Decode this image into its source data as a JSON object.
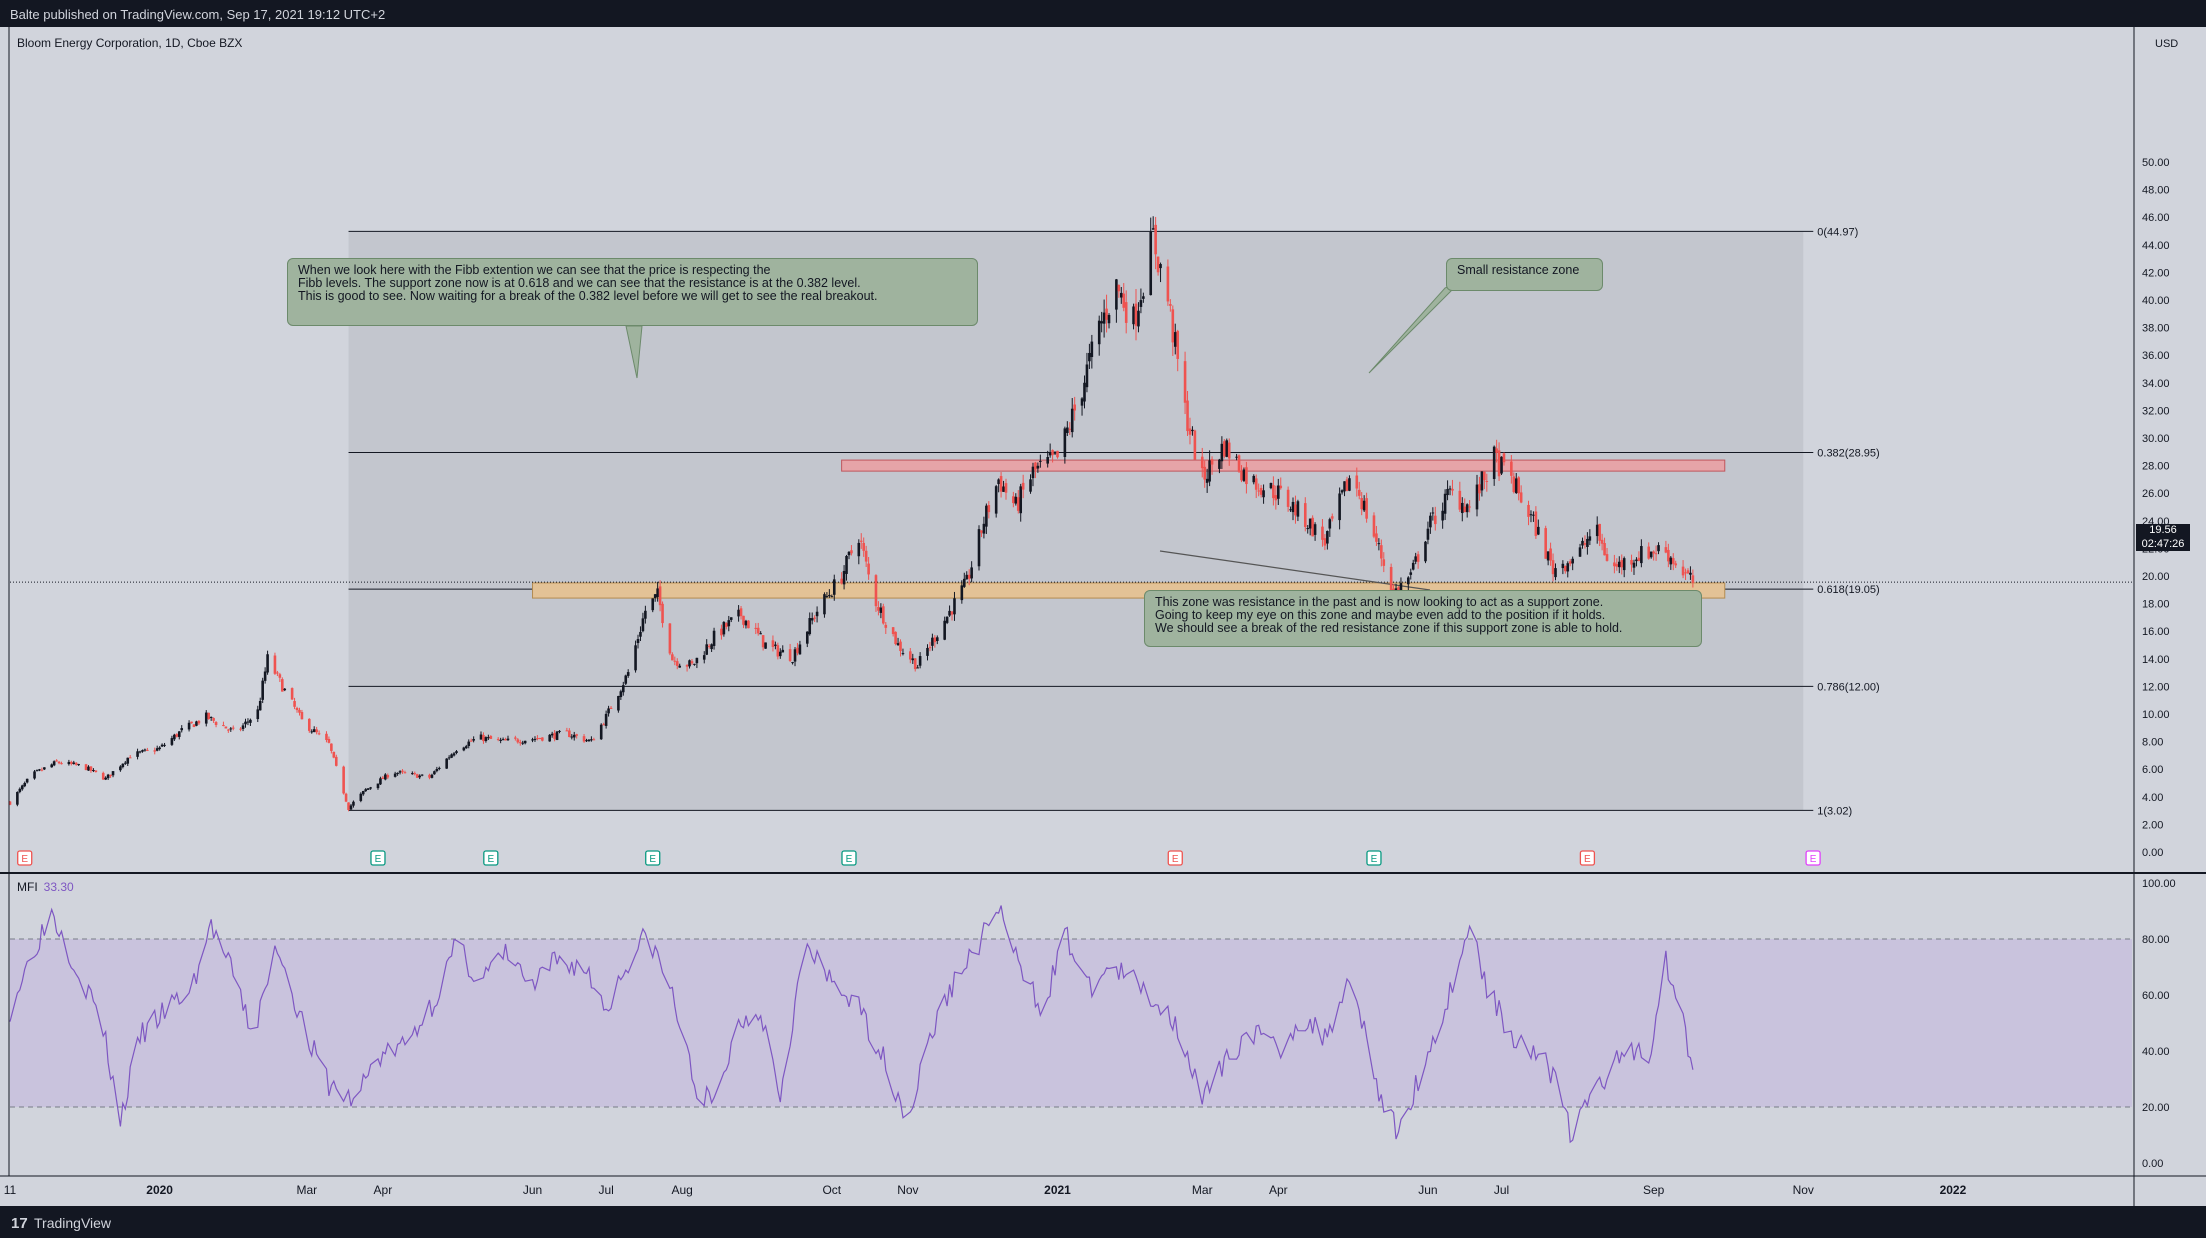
{
  "header": {
    "publish_info": "Balte published on TradingView.com, Sep 17, 2021 19:12 UTC+2"
  },
  "footer": {
    "logo_glyph": "17",
    "brand": "TradingView"
  },
  "symbol": {
    "title": "Bloom Energy Corporation, 1D, Cboe BZX"
  },
  "price_axis": {
    "currency": "USD",
    "current_price": "19.56",
    "countdown": "02:47:26"
  },
  "indicator": {
    "name": "MFI",
    "value": "33.30",
    "color": "#7e57c2"
  },
  "annotations": {
    "callout_main": "When we look here with the Fibb extention we can see that the price is respecting the\nFibb levels. The support zone now is at 0.618 and we can see that the resistance is at the 0.382 level.\nThis is good to see. Now waiting for a break of the 0.382 level before we will get to see the real breakout.",
    "callout_resistance": "Small resistance zone",
    "callout_support": "This zone was resistance in the past and is now looking to act as a support zone.\nGoing to keep my eye on this zone and maybe even add to the position if it holds.\nWe should see a break of the red resistance zone if this support zone is able to hold."
  },
  "colors": {
    "up": "#131722",
    "down": "#ef5350",
    "support_zone": "#e3c296",
    "resistance_zone": "#e6a4a8",
    "mfi_line": "#7e57c2",
    "fib_area": "#c3c6ce"
  },
  "earnings_markers": [
    {
      "date": "2019-11-07",
      "type": "down",
      "label": "E"
    },
    {
      "date": "2020-03-30",
      "type": "up",
      "label": "E"
    },
    {
      "date": "2020-05-15",
      "type": "up",
      "label": "E"
    },
    {
      "date": "2020-07-20",
      "type": "up",
      "label": "E"
    },
    {
      "date": "2020-10-08",
      "type": "up",
      "label": "E"
    },
    {
      "date": "2021-02-18",
      "type": "down",
      "label": "E"
    },
    {
      "date": "2021-05-10",
      "type": "up",
      "label": "E"
    },
    {
      "date": "2021-08-05",
      "type": "down",
      "label": "E"
    },
    {
      "date": "2021-11-05",
      "type": "future",
      "label": "E"
    }
  ],
  "chart_data": [
    {
      "type": "candlestick",
      "title": "Bloom Energy Corporation, 1D, Cboe BZX",
      "ylabel": "USD",
      "ylim": [
        0,
        50
      ],
      "xlim": [
        "2019-11-01",
        "2022-03-15"
      ],
      "y_ticks": [
        "0.00",
        "2.00",
        "4.00",
        "6.00",
        "8.00",
        "10.00",
        "12.00",
        "14.00",
        "16.00",
        "18.00",
        "20.00",
        "22.00",
        "24.00",
        "26.00",
        "28.00",
        "30.00",
        "32.00",
        "34.00",
        "36.00",
        "38.00",
        "40.00",
        "42.00",
        "44.00",
        "46.00",
        "48.00",
        "50.00"
      ],
      "x_ticks": [
        {
          "date": "2019-11-01",
          "label": "11",
          "bold": false
        },
        {
          "date": "2020-01-01",
          "label": "2020",
          "bold": true
        },
        {
          "date": "2020-03-01",
          "label": "Mar",
          "bold": false
        },
        {
          "date": "2020-04-01",
          "label": "Apr",
          "bold": false
        },
        {
          "date": "2020-06-01",
          "label": "Jun",
          "bold": false
        },
        {
          "date": "2020-07-01",
          "label": "Jul",
          "bold": false
        },
        {
          "date": "2020-08-01",
          "label": "Aug",
          "bold": false
        },
        {
          "date": "2020-10-01",
          "label": "Oct",
          "bold": false
        },
        {
          "date": "2020-11-01",
          "label": "Nov",
          "bold": false
        },
        {
          "date": "2021-01-01",
          "label": "2021",
          "bold": true
        },
        {
          "date": "2021-03-01",
          "label": "Mar",
          "bold": false
        },
        {
          "date": "2021-04-01",
          "label": "Apr",
          "bold": false
        },
        {
          "date": "2021-06-01",
          "label": "Jun",
          "bold": false
        },
        {
          "date": "2021-07-01",
          "label": "Jul",
          "bold": false
        },
        {
          "date": "2021-09-01",
          "label": "Sep",
          "bold": false
        },
        {
          "date": "2021-11-01",
          "label": "Nov",
          "bold": false
        },
        {
          "date": "2022-01-01",
          "label": "2022",
          "bold": true
        }
      ],
      "close_path": [
        [
          "2019-11-01",
          3.6
        ],
        [
          "2019-11-10",
          5.6
        ],
        [
          "2019-11-20",
          6.5
        ],
        [
          "2019-12-01",
          6.2
        ],
        [
          "2019-12-10",
          5.3
        ],
        [
          "2019-12-20",
          7.0
        ],
        [
          "2020-01-01",
          7.5
        ],
        [
          "2020-01-10",
          8.8
        ],
        [
          "2020-01-20",
          9.8
        ],
        [
          "2020-02-01",
          8.6
        ],
        [
          "2020-02-10",
          10.2
        ],
        [
          "2020-02-14",
          14.0
        ],
        [
          "2020-02-20",
          12.0
        ],
        [
          "2020-02-28",
          9.5
        ],
        [
          "2020-03-10",
          7.8
        ],
        [
          "2020-03-18",
          3.2
        ],
        [
          "2020-03-25",
          4.5
        ],
        [
          "2020-04-05",
          5.8
        ],
        [
          "2020-04-20",
          5.4
        ],
        [
          "2020-05-01",
          7.5
        ],
        [
          "2020-05-10",
          8.3
        ],
        [
          "2020-05-20",
          8.0
        ],
        [
          "2020-06-01",
          8.2
        ],
        [
          "2020-06-15",
          8.6
        ],
        [
          "2020-06-25",
          8.0
        ],
        [
          "2020-07-01",
          9.8
        ],
        [
          "2020-07-10",
          13.0
        ],
        [
          "2020-07-17",
          17.5
        ],
        [
          "2020-07-22",
          18.6
        ],
        [
          "2020-07-28",
          14.0
        ],
        [
          "2020-08-05",
          13.5
        ],
        [
          "2020-08-15",
          15.8
        ],
        [
          "2020-08-25",
          17.2
        ],
        [
          "2020-09-05",
          14.8
        ],
        [
          "2020-09-15",
          14.2
        ],
        [
          "2020-09-25",
          17.5
        ],
        [
          "2020-10-05",
          20.0
        ],
        [
          "2020-10-12",
          23.0
        ],
        [
          "2020-10-18",
          18.5
        ],
        [
          "2020-10-28",
          15.0
        ],
        [
          "2020-11-05",
          13.5
        ],
        [
          "2020-11-15",
          16.5
        ],
        [
          "2020-11-25",
          19.5
        ],
        [
          "2020-12-02",
          24.0
        ],
        [
          "2020-12-08",
          27.0
        ],
        [
          "2020-12-15",
          25.0
        ],
        [
          "2020-12-22",
          27.5
        ],
        [
          "2021-01-01",
          28.5
        ],
        [
          "2021-01-10",
          33.0
        ],
        [
          "2021-01-18",
          38.0
        ],
        [
          "2021-01-25",
          41.0
        ],
        [
          "2021-02-01",
          38.5
        ],
        [
          "2021-02-09",
          44.5
        ],
        [
          "2021-02-15",
          40.0
        ],
        [
          "2021-02-22",
          32.0
        ],
        [
          "2021-03-01",
          27.0
        ],
        [
          "2021-03-10",
          29.5
        ],
        [
          "2021-03-20",
          27.0
        ],
        [
          "2021-04-01",
          26.0
        ],
        [
          "2021-04-10",
          24.5
        ],
        [
          "2021-04-20",
          22.5
        ],
        [
          "2021-05-01",
          27.5
        ],
        [
          "2021-05-10",
          23.0
        ],
        [
          "2021-05-18",
          18.8
        ],
        [
          "2021-05-25",
          20.0
        ],
        [
          "2021-06-01",
          23.5
        ],
        [
          "2021-06-10",
          26.0
        ],
        [
          "2021-06-18",
          25.0
        ],
        [
          "2021-06-28",
          28.5
        ],
        [
          "2021-07-05",
          27.0
        ],
        [
          "2021-07-15",
          23.5
        ],
        [
          "2021-07-22",
          20.5
        ],
        [
          "2021-08-01",
          21.5
        ],
        [
          "2021-08-08",
          23.5
        ],
        [
          "2021-08-15",
          20.5
        ],
        [
          "2021-08-25",
          21.5
        ],
        [
          "2021-09-05",
          22.0
        ],
        [
          "2021-09-12",
          20.5
        ],
        [
          "2021-09-17",
          19.56
        ]
      ],
      "fib_levels": [
        {
          "ratio": "0",
          "price": 44.97,
          "label": "0(44.97)"
        },
        {
          "ratio": "0.382",
          "price": 28.95,
          "label": "0.382(28.95)"
        },
        {
          "ratio": "0.618",
          "price": 19.05,
          "label": "0.618(19.05)"
        },
        {
          "ratio": "0.786",
          "price": 12.0,
          "label": "0.786(12.00)"
        },
        {
          "ratio": "1",
          "price": 3.02,
          "label": "1(3.02)"
        }
      ],
      "fib_range": {
        "start": "2020-03-18",
        "end": "2021-11-01"
      },
      "zones": [
        {
          "name": "resistance",
          "top": 28.4,
          "bottom": 27.6,
          "start": "2020-10-05",
          "end": "2021-09-30"
        },
        {
          "name": "support",
          "top": 19.5,
          "bottom": 18.4,
          "start": "2020-06-01",
          "end": "2021-09-30"
        }
      ],
      "current_price_line": 19.56
    },
    {
      "type": "line",
      "title": "MFI",
      "ylim": [
        0,
        100
      ],
      "y_ticks": [
        "0.00",
        "20.00",
        "40.00",
        "60.00",
        "80.00",
        "100.00"
      ],
      "bands": [
        20,
        80
      ],
      "series": [
        {
          "name": "MFI",
          "values": [
            [
              "2019-11-01",
              55
            ],
            [
              "2019-11-10",
              75
            ],
            [
              "2019-11-18",
              90
            ],
            [
              "2019-11-28",
              70
            ],
            [
              "2019-12-08",
              52
            ],
            [
              "2019-12-16",
              15
            ],
            [
              "2019-12-24",
              45
            ],
            [
              "2020-01-04",
              55
            ],
            [
              "2020-01-14",
              62
            ],
            [
              "2020-01-22",
              85
            ],
            [
              "2020-02-01",
              65
            ],
            [
              "2020-02-08",
              45
            ],
            [
              "2020-02-18",
              78
            ],
            [
              "2020-03-01",
              45
            ],
            [
              "2020-03-10",
              28
            ],
            [
              "2020-03-20",
              22
            ],
            [
              "2020-03-30",
              38
            ],
            [
              "2020-04-10",
              42
            ],
            [
              "2020-04-22",
              58
            ],
            [
              "2020-05-01",
              78
            ],
            [
              "2020-05-10",
              65
            ],
            [
              "2020-05-22",
              75
            ],
            [
              "2020-06-01",
              62
            ],
            [
              "2020-06-10",
              72
            ],
            [
              "2020-06-22",
              70
            ],
            [
              "2020-07-01",
              55
            ],
            [
              "2020-07-10",
              72
            ],
            [
              "2020-07-18",
              82
            ],
            [
              "2020-07-28",
              60
            ],
            [
              "2020-08-06",
              28
            ],
            [
              "2020-08-14",
              20
            ],
            [
              "2020-08-24",
              50
            ],
            [
              "2020-09-02",
              55
            ],
            [
              "2020-09-10",
              25
            ],
            [
              "2020-09-20",
              78
            ],
            [
              "2020-09-30",
              65
            ],
            [
              "2020-10-10",
              58
            ],
            [
              "2020-10-20",
              42
            ],
            [
              "2020-11-01",
              15
            ],
            [
              "2020-11-10",
              45
            ],
            [
              "2020-11-20",
              65
            ],
            [
              "2020-12-01",
              80
            ],
            [
              "2020-12-08",
              92
            ],
            [
              "2020-12-16",
              70
            ],
            [
              "2020-12-26",
              55
            ],
            [
              "2021-01-04",
              82
            ],
            [
              "2021-01-14",
              62
            ],
            [
              "2021-01-22",
              70
            ],
            [
              "2021-02-01",
              65
            ],
            [
              "2021-02-10",
              58
            ],
            [
              "2021-02-20",
              48
            ],
            [
              "2021-03-01",
              22
            ],
            [
              "2021-03-10",
              35
            ],
            [
              "2021-03-20",
              48
            ],
            [
              "2021-04-01",
              40
            ],
            [
              "2021-04-10",
              52
            ],
            [
              "2021-04-20",
              45
            ],
            [
              "2021-05-01",
              68
            ],
            [
              "2021-05-12",
              25
            ],
            [
              "2021-05-20",
              10
            ],
            [
              "2021-05-28",
              30
            ],
            [
              "2021-06-08",
              55
            ],
            [
              "2021-06-18",
              85
            ],
            [
              "2021-06-26",
              60
            ],
            [
              "2021-07-06",
              45
            ],
            [
              "2021-07-16",
              40
            ],
            [
              "2021-07-24",
              28
            ],
            [
              "2021-07-30",
              8
            ],
            [
              "2021-08-06",
              25
            ],
            [
              "2021-08-14",
              32
            ],
            [
              "2021-08-22",
              42
            ],
            [
              "2021-08-30",
              38
            ],
            [
              "2021-09-06",
              72
            ],
            [
              "2021-09-12",
              55
            ],
            [
              "2021-09-17",
              33.3
            ]
          ]
        }
      ]
    }
  ]
}
